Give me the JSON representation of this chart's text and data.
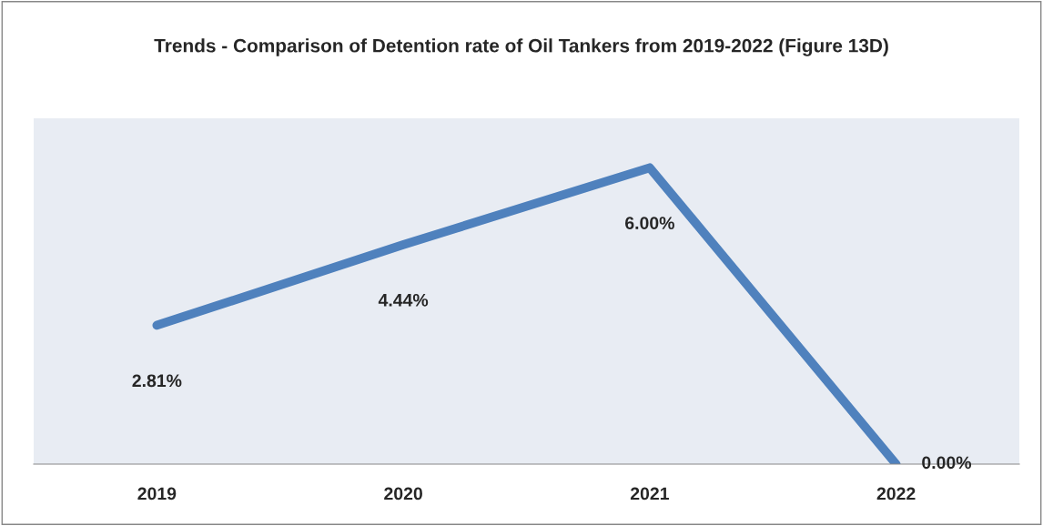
{
  "chart_data": {
    "type": "line",
    "title": "Trends - Comparison of Detention rate of Oil Tankers from 2019-2022 (Figure 13D)",
    "categories": [
      "2019",
      "2020",
      "2021",
      "2022"
    ],
    "series": [
      {
        "color": "#4f81bd",
        "values": [
          2.81,
          4.44,
          6.0,
          0.0
        ],
        "value_labels": [
          "2.81%",
          "4.44%",
          "6.00%",
          "0.00%"
        ]
      }
    ],
    "ylim": [
      0,
      7
    ],
    "tick_labels": "x",
    "marker": "none",
    "line_style": "solid"
  }
}
